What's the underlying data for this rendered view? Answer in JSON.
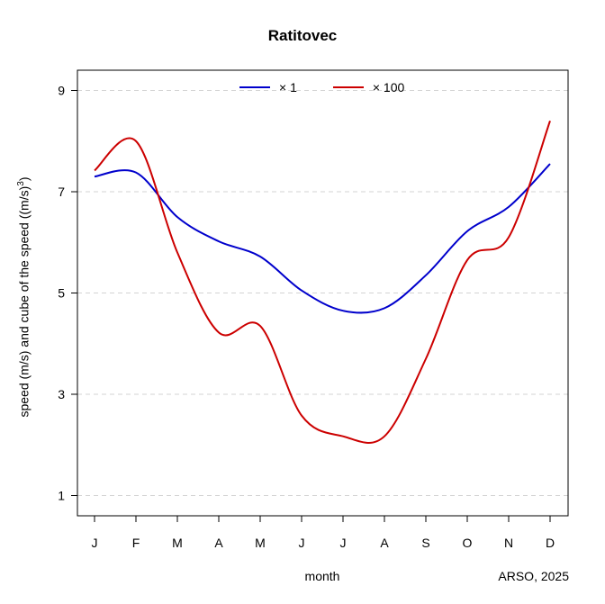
{
  "chart_data": {
    "type": "line",
    "title": "Ratitovec",
    "xlabel": "month",
    "ylabel_main": "speed (m/s) and cube of the speed ((m/s)",
    "ylabel_sup": "3",
    "ylabel_tail": ")",
    "credit": "ARSO, 2025",
    "categories": [
      "J",
      "F",
      "M",
      "A",
      "M",
      "J",
      "J",
      "A",
      "S",
      "O",
      "N",
      "D"
    ],
    "yticks": [
      1,
      3,
      5,
      7,
      9
    ],
    "ylim": [
      0.6,
      9.4
    ],
    "grid": "horizontal dashed",
    "legend_position": "top-center",
    "series": [
      {
        "name": "× 1",
        "color": "#0000cc",
        "values": [
          7.3,
          7.38,
          6.5,
          6.02,
          5.72,
          5.05,
          4.65,
          4.7,
          5.35,
          6.22,
          6.7,
          7.55
        ]
      },
      {
        "name": "×  100",
        "color": "#cc0000",
        "values": [
          7.42,
          8.0,
          5.8,
          4.22,
          4.35,
          2.58,
          2.17,
          2.17,
          3.7,
          5.65,
          6.1,
          8.4
        ]
      }
    ]
  }
}
